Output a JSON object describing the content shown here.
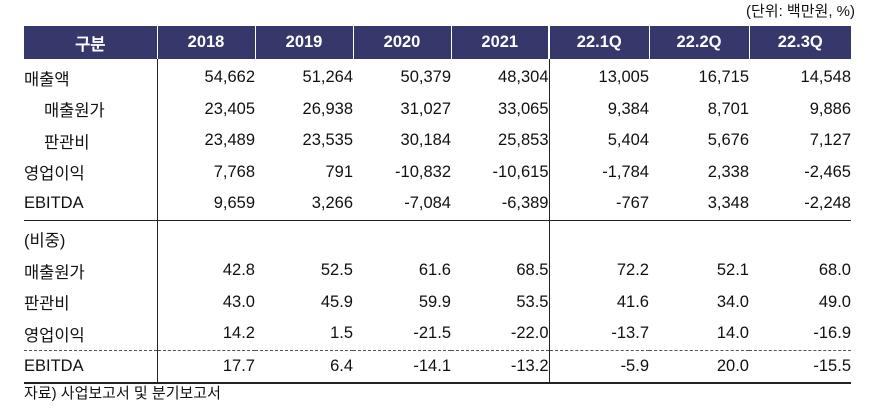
{
  "unit_note": "(단위: 백만원, %)",
  "header": [
    "구분",
    "2018",
    "2019",
    "2020",
    "2021",
    "22.1Q",
    "22.2Q",
    "22.3Q"
  ],
  "rows": [
    {
      "label": "매출액",
      "values": [
        "54,662",
        "51,264",
        "50,379",
        "48,304",
        "13,005",
        "16,715",
        "14,548"
      ]
    },
    {
      "label": "매출원가",
      "values": [
        "23,405",
        "26,938",
        "31,027",
        "33,065",
        "9,384",
        "8,701",
        "9,886"
      ]
    },
    {
      "label": "판관비",
      "values": [
        "23,489",
        "23,535",
        "30,184",
        "25,853",
        "5,404",
        "5,676",
        "7,127"
      ]
    },
    {
      "label": "영업이익",
      "values": [
        "7,768",
        "791",
        "-10,832",
        "-10,615",
        "-1,784",
        "2,338",
        "-2,465"
      ]
    },
    {
      "label": "EBITDA",
      "values": [
        "9,659",
        "3,266",
        "-7,084",
        "-6,389",
        "-767",
        "3,348",
        "-2,248"
      ]
    },
    {
      "label": "(비중)",
      "values": [
        "",
        "",
        "",
        "",
        "",
        "",
        ""
      ]
    },
    {
      "label": "매출원가",
      "values": [
        "42.8",
        "52.5",
        "61.6",
        "68.5",
        "72.2",
        "52.1",
        "68.0"
      ]
    },
    {
      "label": "판관비",
      "values": [
        "43.0",
        "45.9",
        "59.9",
        "53.5",
        "41.6",
        "34.0",
        "49.0"
      ]
    },
    {
      "label": "영업이익",
      "values": [
        "14.2",
        "1.5",
        "-21.5",
        "-22.0",
        "-13.7",
        "14.0",
        "-16.9"
      ]
    },
    {
      "label": "EBITDA",
      "values": [
        "17.7",
        "6.4",
        "-14.1",
        "-13.2",
        "-5.9",
        "20.0",
        "-15.5"
      ]
    }
  ],
  "source_note": "자료) 사업보고서 및 분기보고서",
  "colors": {
    "header_bg": "#36386b",
    "header_text": "#ffffff"
  }
}
